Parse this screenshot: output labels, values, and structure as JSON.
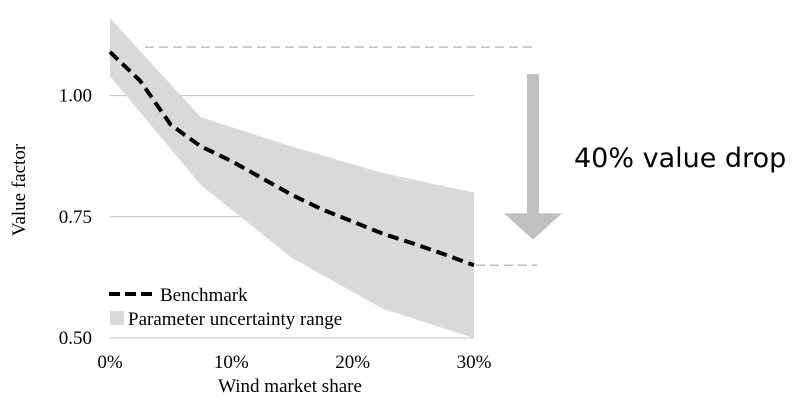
{
  "chart_data": {
    "type": "line",
    "title": "",
    "xlabel": "Wind market share",
    "ylabel": "Value factor",
    "xlim": [
      0,
      0.3
    ],
    "ylim": [
      0.5,
      1.16
    ],
    "grid": true,
    "legend_position": "bottom-left",
    "x_ticks": [
      {
        "value": 0,
        "label": "0%"
      },
      {
        "value": 0.1,
        "label": "10%"
      },
      {
        "value": 0.2,
        "label": "20%"
      },
      {
        "value": 0.3,
        "label": "30%"
      }
    ],
    "y_ticks": [
      {
        "value": 0.5,
        "label": "0.50"
      },
      {
        "value": 0.75,
        "label": "0.75"
      },
      {
        "value": 1.0,
        "label": "1.00"
      }
    ],
    "series": [
      {
        "name": "Benchmark",
        "style": "dashed",
        "color": "#000000",
        "x": [
          0,
          0.025,
          0.05,
          0.075,
          0.1,
          0.125,
          0.15,
          0.175,
          0.2,
          0.225,
          0.25,
          0.275,
          0.3
        ],
        "y": [
          1.09,
          1.03,
          0.94,
          0.895,
          0.865,
          0.83,
          0.795,
          0.765,
          0.74,
          0.715,
          0.695,
          0.673,
          0.65
        ]
      }
    ],
    "range": {
      "name": "Parameter uncertainty range",
      "color": "#d9d9d9",
      "x": [
        0,
        0.075,
        0.15,
        0.225,
        0.3
      ],
      "upper": [
        1.16,
        0.955,
        0.895,
        0.84,
        0.8
      ],
      "lower": [
        1.04,
        0.815,
        0.665,
        0.56,
        0.5
      ]
    },
    "annotation": {
      "text": "40% value drop",
      "from": 1.1,
      "to": 0.65,
      "color": "#c0c0c0"
    }
  }
}
